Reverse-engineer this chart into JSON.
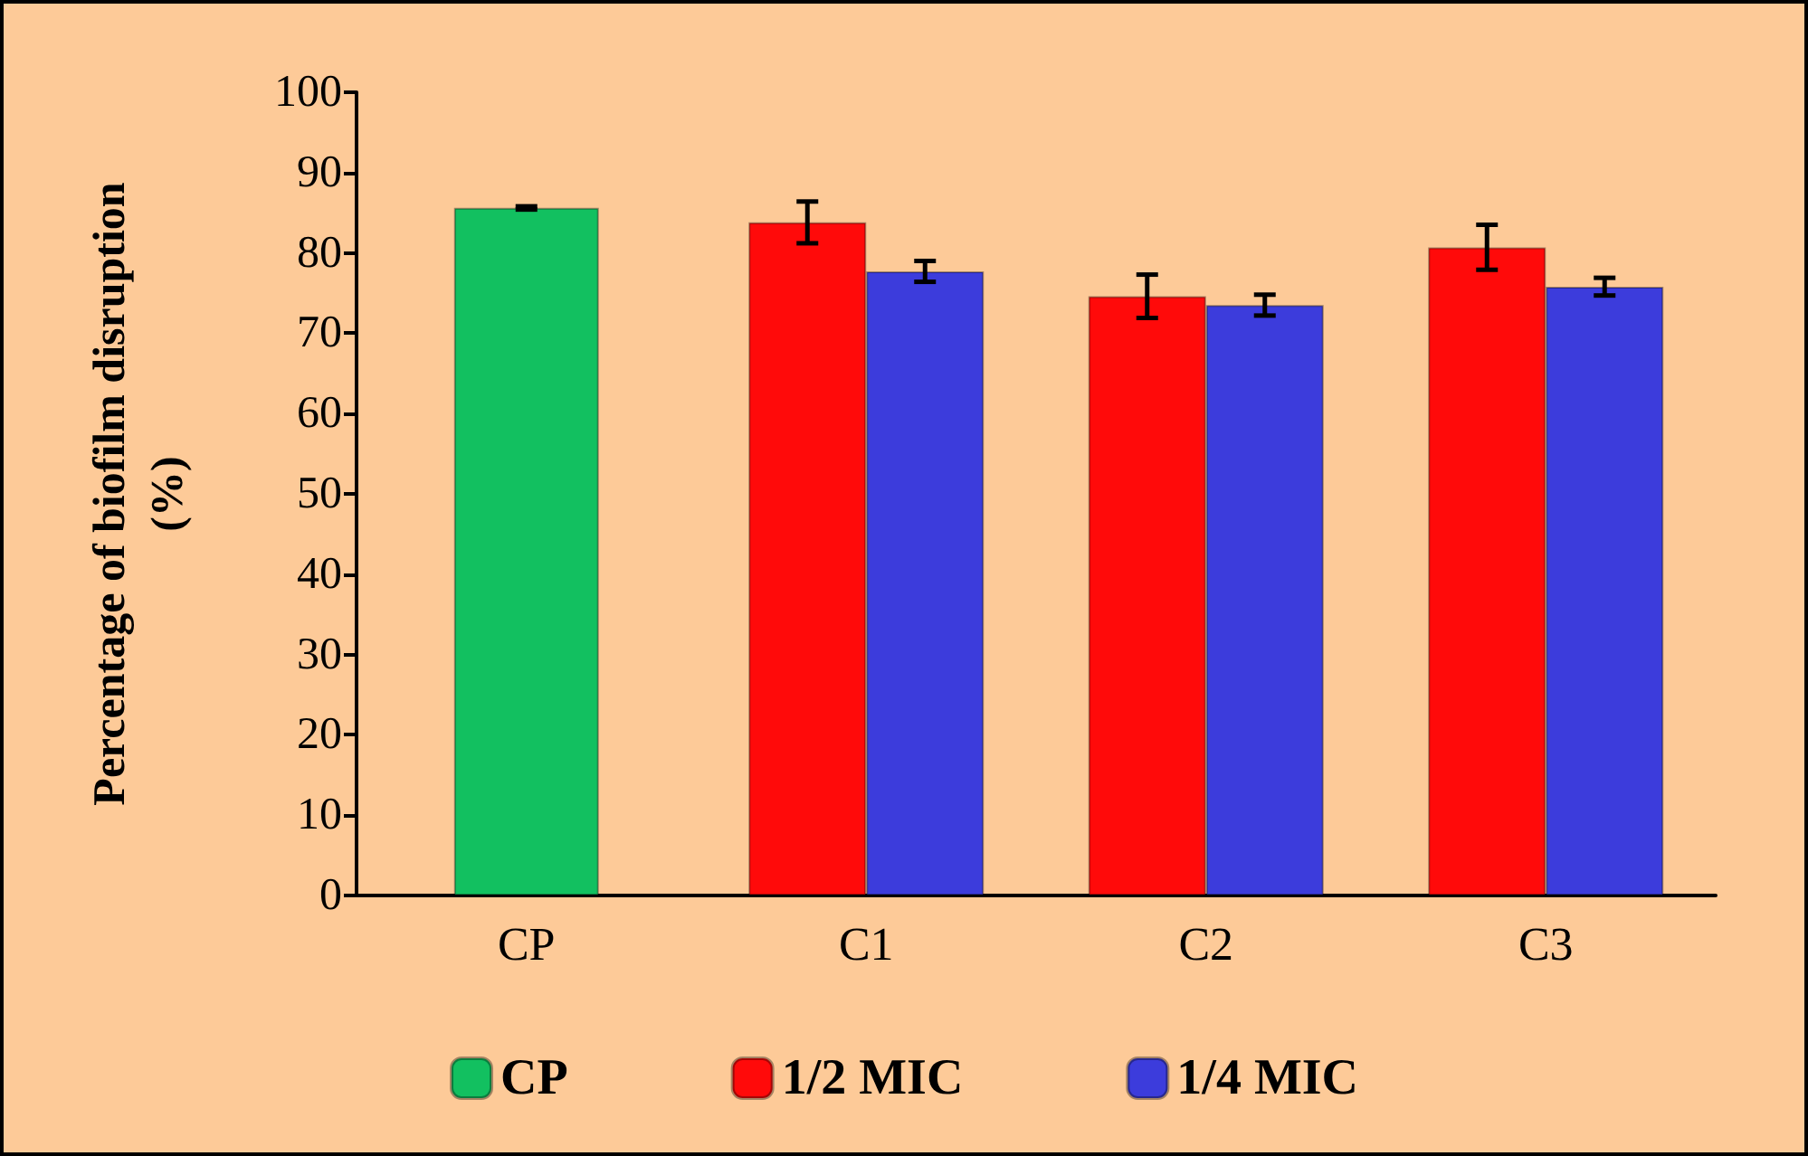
{
  "chart_data": {
    "type": "bar",
    "ylabel": "Percentage of biofilm disruption\n(%)",
    "categories": [
      "CP",
      "C1",
      "C2",
      "C3"
    ],
    "series": [
      {
        "name": "CP",
        "color": "#12c060",
        "values": [
          85.6,
          null,
          null,
          null
        ],
        "errors": [
          0.2,
          null,
          null,
          null
        ]
      },
      {
        "name": "1/2 MIC",
        "color": "#ff0a0a",
        "values": [
          null,
          83.8,
          74.6,
          80.7
        ],
        "errors": [
          null,
          2.6,
          2.7,
          2.8
        ]
      },
      {
        "name": "1/4 MIC",
        "color": "#3c3cdc",
        "values": [
          null,
          77.7,
          73.5,
          75.8
        ],
        "errors": [
          null,
          1.3,
          1.3,
          1.1
        ]
      }
    ],
    "ylim": [
      0,
      100
    ],
    "yticks": [
      0,
      10,
      20,
      30,
      40,
      50,
      60,
      70,
      80,
      90,
      100
    ],
    "grid": false,
    "legend": "bottom"
  }
}
